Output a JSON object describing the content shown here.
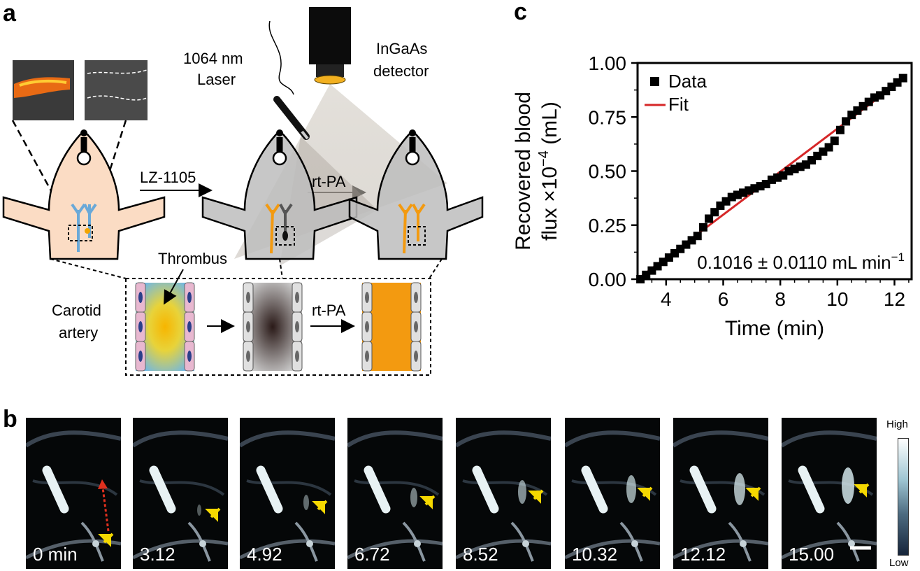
{
  "panels": {
    "a": "a",
    "b": "b",
    "c": "c"
  },
  "panel_a": {
    "laser_label_1": "1064 nm",
    "laser_label_2": "Laser",
    "detector_label_1": "InGaAs",
    "detector_label_2": "detector",
    "step1_label": "LZ-1105",
    "step2_label": "rt-PA",
    "thrombus_label": "Thrombus",
    "carotid_label_1": "Carotid",
    "carotid_label_2": "artery",
    "inset_step_label": "rt-PA"
  },
  "panel_b": {
    "frames": [
      {
        "time": "0 min",
        "arrow": 0.78
      },
      {
        "time": "3.12",
        "arrow": 0.61
      },
      {
        "time": "4.92",
        "arrow": 0.56
      },
      {
        "time": "6.72",
        "arrow": 0.53
      },
      {
        "time": "8.52",
        "arrow": 0.49
      },
      {
        "time": "10.32",
        "arrow": 0.47
      },
      {
        "time": "12.12",
        "arrow": 0.47
      },
      {
        "time": "15.00",
        "arrow": 0.45
      }
    ],
    "colorbar_high": "High",
    "colorbar_low": "Low"
  },
  "chart_data": {
    "type": "scatter",
    "xlabel": "Time (min)",
    "ylabel_line1": "Recovered blood",
    "ylabel_line2": "flux ×10",
    "ylabel_exp": "−4",
    "ylabel_unit": " (mL)",
    "xlim": [
      3.0,
      12.6
    ],
    "ylim": [
      0.0,
      1.0
    ],
    "xticks": [
      "4",
      "6",
      "8",
      "10",
      "12"
    ],
    "yticks": [
      "0.00",
      "0.25",
      "0.50",
      "0.75",
      "1.00"
    ],
    "legend": {
      "data": "Data",
      "fit": "Fit",
      "placement": "top-left"
    },
    "annotation": "0.1016 ± 0.0110 mL min",
    "annotation_exp": "−1",
    "series": [
      {
        "name": "Data",
        "x": [
          3.1,
          3.3,
          3.5,
          3.7,
          3.9,
          4.1,
          4.3,
          4.5,
          4.7,
          4.9,
          5.1,
          5.3,
          5.5,
          5.7,
          5.9,
          6.1,
          6.3,
          6.5,
          6.7,
          6.9,
          7.1,
          7.3,
          7.5,
          7.7,
          7.9,
          8.1,
          8.3,
          8.5,
          8.7,
          8.9,
          9.1,
          9.3,
          9.5,
          9.7,
          9.9,
          10.1,
          10.3,
          10.5,
          10.7,
          10.9,
          11.1,
          11.3,
          11.5,
          11.7,
          11.9,
          12.1,
          12.3
        ],
        "y": [
          0.0,
          0.02,
          0.04,
          0.06,
          0.08,
          0.1,
          0.12,
          0.14,
          0.16,
          0.18,
          0.2,
          0.24,
          0.28,
          0.31,
          0.34,
          0.36,
          0.38,
          0.39,
          0.4,
          0.41,
          0.42,
          0.43,
          0.44,
          0.46,
          0.47,
          0.48,
          0.5,
          0.51,
          0.52,
          0.53,
          0.55,
          0.57,
          0.59,
          0.61,
          0.64,
          0.69,
          0.73,
          0.76,
          0.78,
          0.8,
          0.82,
          0.84,
          0.85,
          0.87,
          0.89,
          0.91,
          0.93
        ]
      },
      {
        "name": "Fit",
        "x": [
          3.0,
          12.4
        ],
        "y": [
          0.0,
          0.935
        ]
      }
    ],
    "colors": {
      "data": "#000000",
      "fit": "#d62728"
    }
  }
}
